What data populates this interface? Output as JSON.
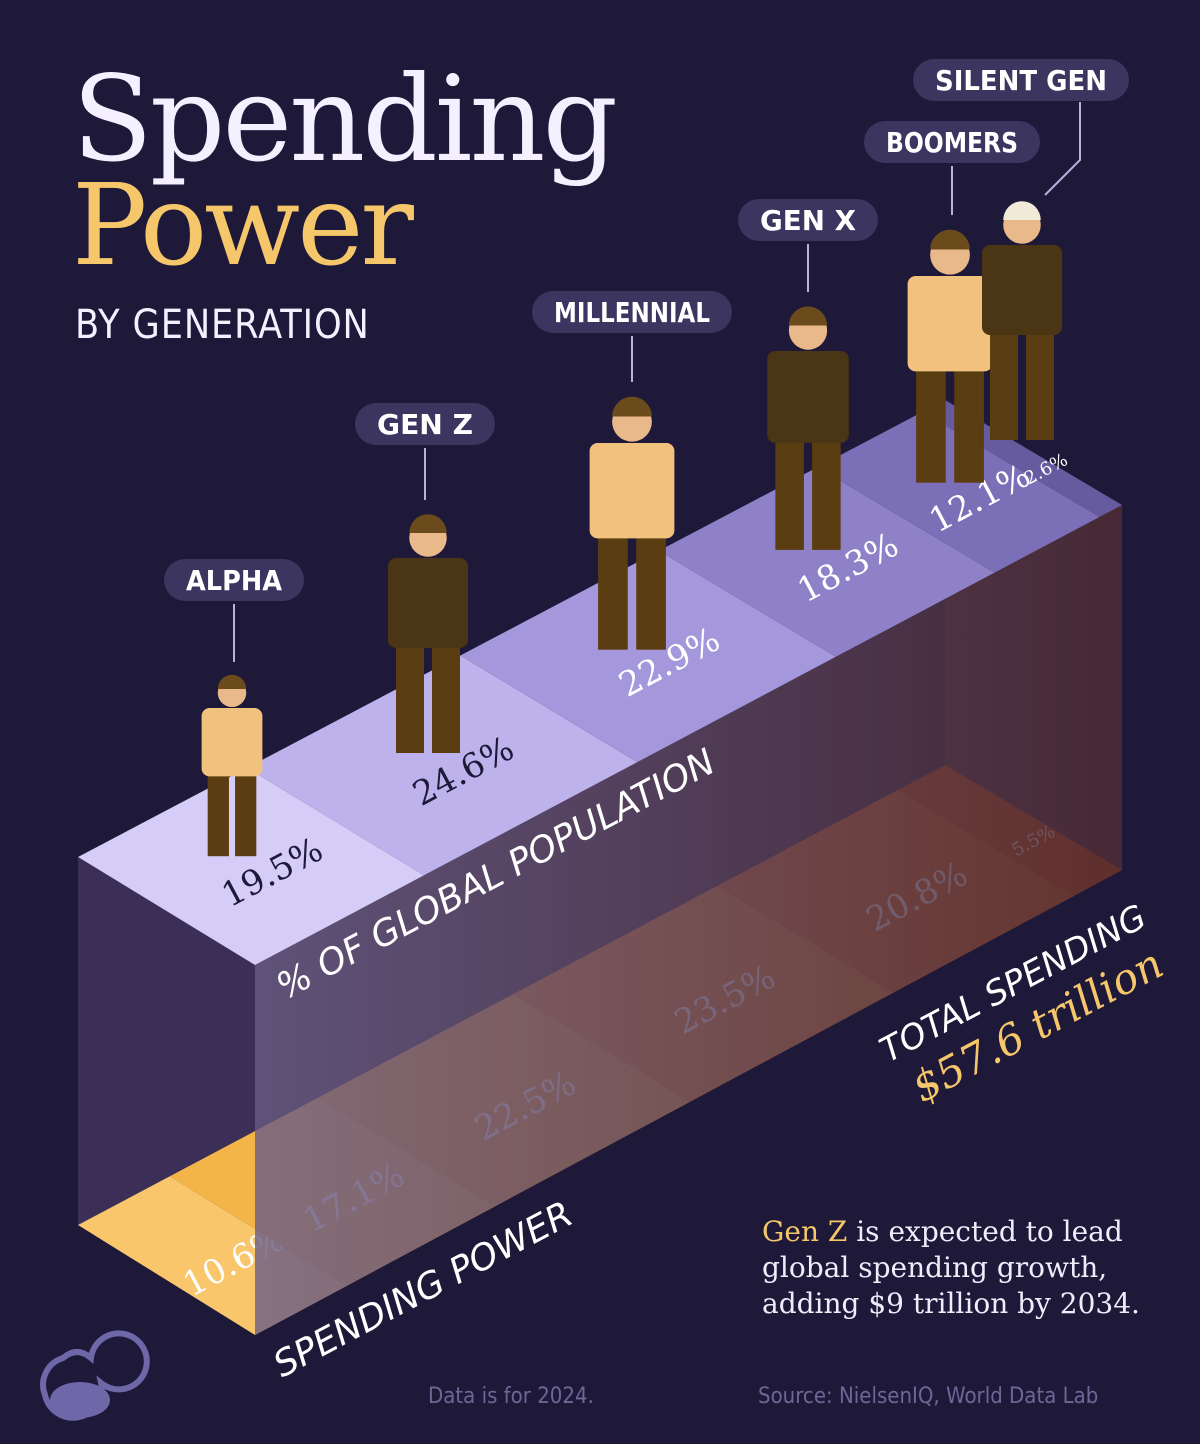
{
  "title": {
    "line1": "Spending",
    "line2": "Power",
    "subtitle": "BY GENERATION"
  },
  "chart_data": {
    "type": "bar",
    "categories": [
      "ALPHA",
      "GEN Z",
      "MILLENNIAL",
      "GEN X",
      "BOOMERS",
      "SILENT GEN"
    ],
    "series": [
      {
        "name": "% OF GLOBAL POPULATION",
        "values": [
          19.5,
          24.6,
          22.9,
          18.3,
          12.1,
          2.6
        ],
        "labels": [
          "19.5%",
          "24.6%",
          "22.9%",
          "18.3%",
          "12.1%",
          "2.6%"
        ]
      },
      {
        "name": "SPENDING POWER",
        "values": [
          10.6,
          17.1,
          22.5,
          23.5,
          20.8,
          5.5
        ],
        "labels": [
          "10.6%",
          "17.1%",
          "22.5%",
          "23.5%",
          "20.8%",
          "5.5%"
        ]
      }
    ],
    "total_label": "TOTAL SPENDING",
    "total_value": "$57.6 trillion",
    "unit": "%"
  },
  "note": {
    "highlight": "Gen Z",
    "rest1": " is expected to lead",
    "line2": "global spending growth,",
    "line3": "adding $9 trillion by 2034."
  },
  "footer": {
    "data_note": "Data is for 2024.",
    "source": "Source: NielsenIQ, World Data Lab"
  },
  "colors": {
    "background": "#1e1839",
    "population": "#b9aee8",
    "spending": "#f0a030",
    "accent": "#f5c76a"
  }
}
